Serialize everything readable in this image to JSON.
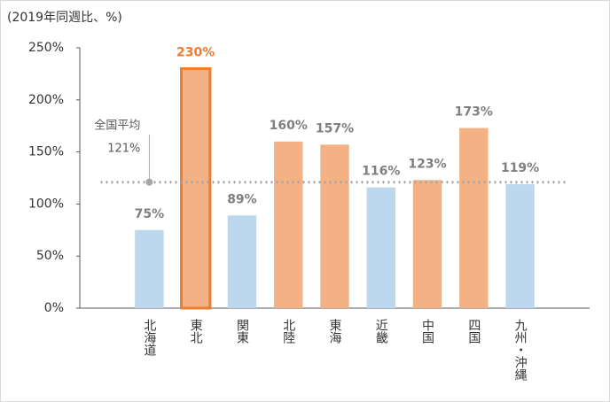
{
  "chart_data": {
    "type": "bar",
    "subtitle": "(2019年同週比、%)",
    "categories": [
      "北海道",
      "東北",
      "関東",
      "北陸",
      "東海",
      "近畿",
      "中国",
      "四国",
      "九州・沖縄"
    ],
    "values": [
      75,
      230,
      89,
      160,
      157,
      116,
      123,
      173,
      119
    ],
    "value_labels": [
      "75%",
      "230%",
      "89%",
      "160%",
      "157%",
      "116%",
      "123%",
      "173%",
      "119%"
    ],
    "colors": [
      "#bdd7ee",
      "#f4b183",
      "#bdd7ee",
      "#f4b183",
      "#f4b183",
      "#bdd7ee",
      "#f4b183",
      "#f4b183",
      "#bdd7ee"
    ],
    "highlight": {
      "index": 1,
      "color": "#ed7d31"
    },
    "average": {
      "label": "全国平均",
      "value": 121,
      "value_label": "121%",
      "color": "#a6a6a6"
    },
    "ylim": [
      0,
      250
    ],
    "yticks": [
      {
        "value": 0,
        "label": "0%"
      },
      {
        "value": 50,
        "label": "50%"
      },
      {
        "value": 100,
        "label": "100%"
      },
      {
        "value": 150,
        "label": "150%"
      },
      {
        "value": 200,
        "label": "200%"
      },
      {
        "value": 250,
        "label": "250%"
      }
    ],
    "grid": false
  }
}
